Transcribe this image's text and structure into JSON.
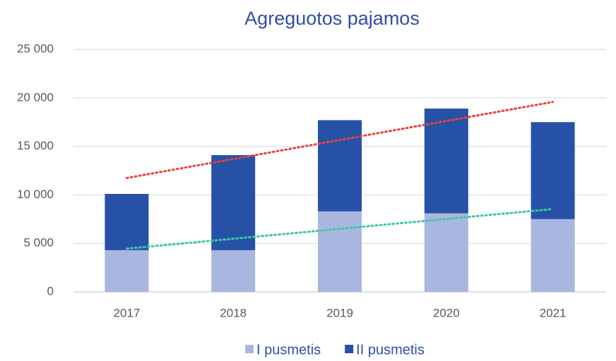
{
  "chart_data": {
    "type": "stacked_bar",
    "title": "Agreguotos pajamos",
    "categories": [
      "2017",
      "2018",
      "2019",
      "2020",
      "2021"
    ],
    "series": [
      {
        "name": "I pusmetis",
        "color": "#a9b6e0",
        "values": [
          4300,
          4300,
          8300,
          8100,
          7500
        ],
        "trend_color": "#3ec9a0"
      },
      {
        "name": "II pusmetis",
        "color": "#2751a7",
        "values": [
          5800,
          9800,
          9400,
          10800,
          10000
        ],
        "trend_color": "#e8433a"
      }
    ],
    "ylim": [
      0,
      25000
    ],
    "yticks": [
      {
        "value": 0,
        "label": "0"
      },
      {
        "value": 5000,
        "label": "5 000"
      },
      {
        "value": 10000,
        "label": "10 000"
      },
      {
        "value": 15000,
        "label": "15 000"
      },
      {
        "value": 20000,
        "label": "20 000"
      },
      {
        "value": 25000,
        "label": "25 000"
      }
    ],
    "grid": true,
    "legend": "bottom"
  }
}
